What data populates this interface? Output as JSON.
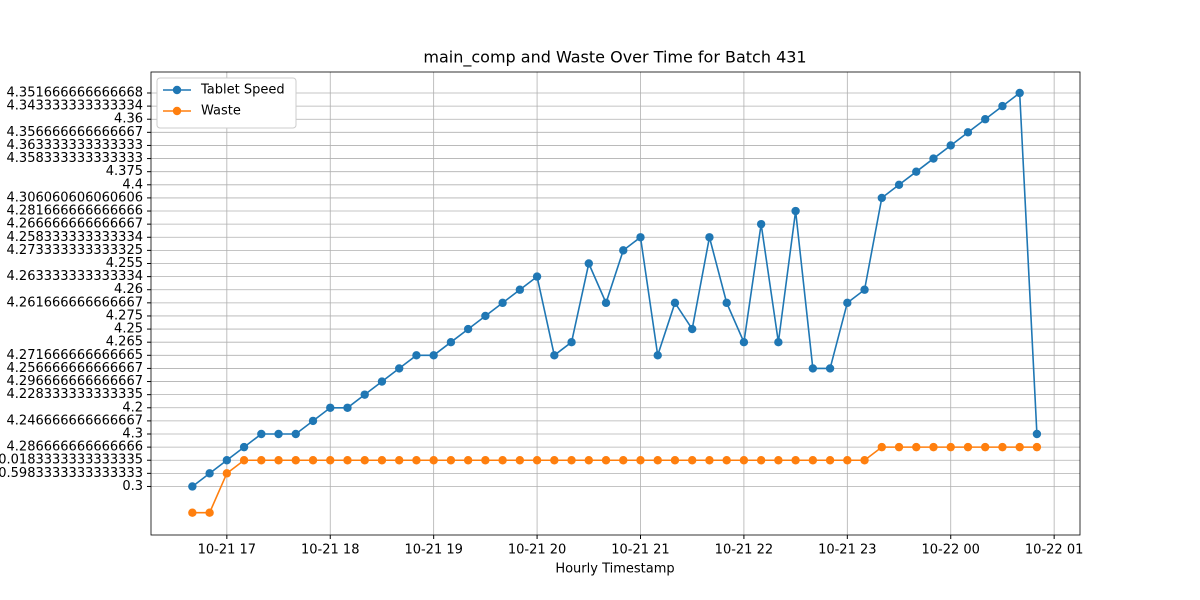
{
  "chart_data": {
    "type": "line",
    "title": "main_comp and Waste Over Time for Batch 431",
    "xlabel": "Hourly Timestamp",
    "x": [
      "10-21 16:40",
      "10-21 16:50",
      "10-21 17:00",
      "10-21 17:10",
      "10-21 17:20",
      "10-21 17:30",
      "10-21 17:40",
      "10-21 17:50",
      "10-21 18:00",
      "10-21 18:10",
      "10-21 18:20",
      "10-21 18:30",
      "10-21 18:40",
      "10-21 18:50",
      "10-21 19:00",
      "10-21 19:10",
      "10-21 19:20",
      "10-21 19:30",
      "10-21 19:40",
      "10-21 19:50",
      "10-21 20:00",
      "10-21 20:10",
      "10-21 20:20",
      "10-21 20:30",
      "10-21 20:40",
      "10-21 20:50",
      "10-21 21:00",
      "10-21 21:10",
      "10-21 21:20",
      "10-21 21:30",
      "10-21 21:40",
      "10-21 21:50",
      "10-21 22:00",
      "10-21 22:10",
      "10-21 22:20",
      "10-21 22:30",
      "10-21 22:40",
      "10-21 22:50",
      "10-21 23:00",
      "10-21 23:10",
      "10-21 23:20",
      "10-21 23:30",
      "10-21 23:40",
      "10-21 23:50",
      "10-22 00:00",
      "10-22 00:10",
      "10-22 00:20",
      "10-22 00:30",
      "10-22 00:40",
      "10-22 00:50"
    ],
    "series": [
      {
        "name": "Tablet Speed",
        "color": "#1f77b4",
        "values": [
          0,
          1,
          2,
          3,
          4,
          4,
          4,
          5,
          6,
          6,
          7,
          8,
          9,
          10,
          10,
          11,
          12,
          13,
          14,
          15,
          16,
          10,
          11,
          17,
          14,
          18,
          19,
          10,
          14,
          12,
          19,
          14,
          11,
          20,
          11,
          21,
          9,
          9,
          14,
          15,
          22,
          23,
          24,
          25,
          26,
          27,
          28,
          29,
          30,
          4
        ]
      },
      {
        "name": "Waste",
        "color": "#ff7f0e",
        "values": [
          -2,
          -2,
          1,
          2,
          2,
          2,
          2,
          2,
          2,
          2,
          2,
          2,
          2,
          2,
          2,
          2,
          2,
          2,
          2,
          2,
          2,
          2,
          2,
          2,
          2,
          2,
          2,
          2,
          2,
          2,
          2,
          2,
          2,
          2,
          2,
          2,
          2,
          2,
          2,
          2,
          3,
          3,
          3,
          3,
          3,
          3,
          3,
          3,
          3,
          3
        ]
      }
    ],
    "xlim": [
      "10-21 16:16",
      "10-22 01:15"
    ],
    "xticks": [
      {
        "value": "10-21 17:00",
        "label": "10-21 17"
      },
      {
        "value": "10-21 18:00",
        "label": "10-21 18"
      },
      {
        "value": "10-21 19:00",
        "label": "10-21 19"
      },
      {
        "value": "10-21 20:00",
        "label": "10-21 20"
      },
      {
        "value": "10-21 21:00",
        "label": "10-21 21"
      },
      {
        "value": "10-21 22:00",
        "label": "10-21 22"
      },
      {
        "value": "10-21 23:00",
        "label": "10-21 23"
      },
      {
        "value": "10-22 00:00",
        "label": "10-22 00"
      },
      {
        "value": "10-22 01:00",
        "label": "10-22 01"
      }
    ],
    "ylim": [
      -3.7,
      31.6
    ],
    "yticks": [
      {
        "value": 0,
        "label": "0.3"
      },
      {
        "value": 1,
        "label": "0.5983333333333333"
      },
      {
        "value": 2,
        "label": "0.0183333333333335"
      },
      {
        "value": 3,
        "label": "4.286666666666666"
      },
      {
        "value": 4,
        "label": "4.3"
      },
      {
        "value": 5,
        "label": "4.246666666666667"
      },
      {
        "value": 6,
        "label": "4.2"
      },
      {
        "value": 7,
        "label": "4.228333333333335"
      },
      {
        "value": 8,
        "label": "4.296666666666667"
      },
      {
        "value": 9,
        "label": "4.256666666666667"
      },
      {
        "value": 10,
        "label": "4.271666666666665"
      },
      {
        "value": 11,
        "label": "4.265"
      },
      {
        "value": 12,
        "label": "4.25"
      },
      {
        "value": 13,
        "label": "4.275"
      },
      {
        "value": 14,
        "label": "4.261666666666667"
      },
      {
        "value": 15,
        "label": "4.26"
      },
      {
        "value": 16,
        "label": "4.263333333333334"
      },
      {
        "value": 17,
        "label": "4.255"
      },
      {
        "value": 18,
        "label": "4.273333333333325"
      },
      {
        "value": 19,
        "label": "4.258333333333334"
      },
      {
        "value": 20,
        "label": "4.266666666666667"
      },
      {
        "value": 21,
        "label": "4.281666666666666"
      },
      {
        "value": 22,
        "label": "4.306060606060606"
      },
      {
        "value": 23,
        "label": "4.4"
      },
      {
        "value": 24,
        "label": "4.375"
      },
      {
        "value": 25,
        "label": "4.358333333333333"
      },
      {
        "value": 26,
        "label": "4.363333333333333"
      },
      {
        "value": 27,
        "label": "4.356666666666667"
      },
      {
        "value": 28,
        "label": "4.36"
      },
      {
        "value": 29,
        "label": "4.343333333333334"
      },
      {
        "value": 30,
        "label": "4.351666666666668"
      }
    ],
    "grid": true,
    "legend": "upper-left"
  }
}
